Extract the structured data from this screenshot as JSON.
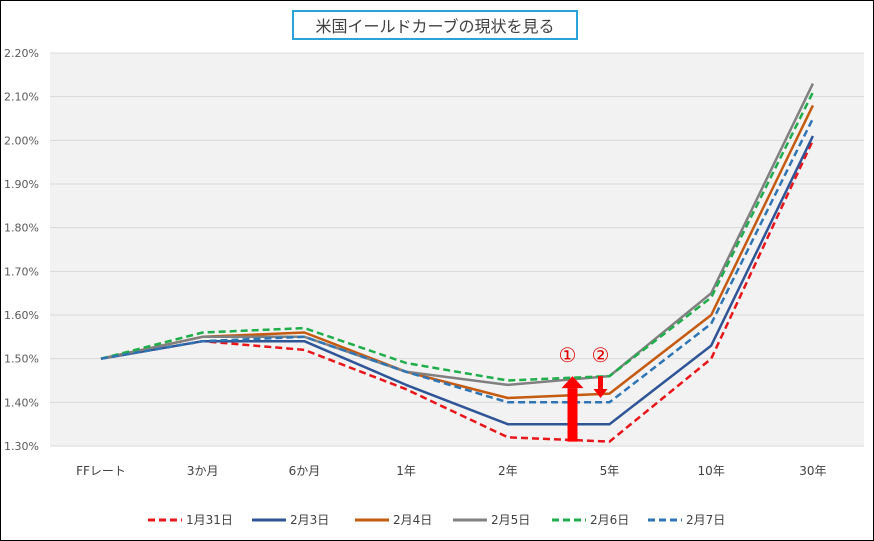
{
  "chart_data": {
    "type": "line",
    "title": "米国イールドカーブの現状を見る",
    "categories": [
      "FFレート",
      "3か月",
      "6か月",
      "1年",
      "2年",
      "5年",
      "10年",
      "30年"
    ],
    "ylim": [
      1.3,
      2.2
    ],
    "y_ticks": [
      "1.30%",
      "1.40%",
      "1.50%",
      "1.60%",
      "1.70%",
      "1.80%",
      "1.90%",
      "2.00%",
      "2.10%",
      "2.20%"
    ],
    "grid": true,
    "legend_position": "bottom",
    "series": [
      {
        "name": "1月31日",
        "color": "#e8151b",
        "dash": true,
        "values": [
          1.5,
          1.54,
          1.52,
          1.43,
          1.32,
          1.31,
          1.5,
          2.0
        ]
      },
      {
        "name": "2月3日",
        "color": "#2f5597",
        "dash": false,
        "values": [
          1.5,
          1.54,
          1.54,
          1.44,
          1.35,
          1.35,
          1.53,
          2.01
        ]
      },
      {
        "name": "2月4日",
        "color": "#c55a11",
        "dash": false,
        "values": [
          1.5,
          1.55,
          1.56,
          1.47,
          1.41,
          1.42,
          1.6,
          2.08
        ]
      },
      {
        "name": "2月5日",
        "color": "#808080",
        "dash": false,
        "values": [
          1.5,
          1.55,
          1.55,
          1.47,
          1.44,
          1.46,
          1.65,
          2.13
        ]
      },
      {
        "name": "2月6日",
        "color": "#1fae4b",
        "dash": true,
        "values": [
          1.5,
          1.56,
          1.57,
          1.49,
          1.45,
          1.46,
          1.64,
          2.11
        ]
      },
      {
        "name": "2月7日",
        "color": "#2e75b6",
        "dash": true,
        "values": [
          1.5,
          1.54,
          1.55,
          1.47,
          1.4,
          1.4,
          1.58,
          2.05
        ]
      }
    ],
    "annotations": [
      {
        "label": "①",
        "x_category": "5年",
        "from": 1.31,
        "to": 1.46,
        "color": "#ff0000"
      },
      {
        "label": "②",
        "x_category": "5年",
        "from": 1.46,
        "to": 1.41,
        "color": "#ff0000"
      }
    ]
  }
}
